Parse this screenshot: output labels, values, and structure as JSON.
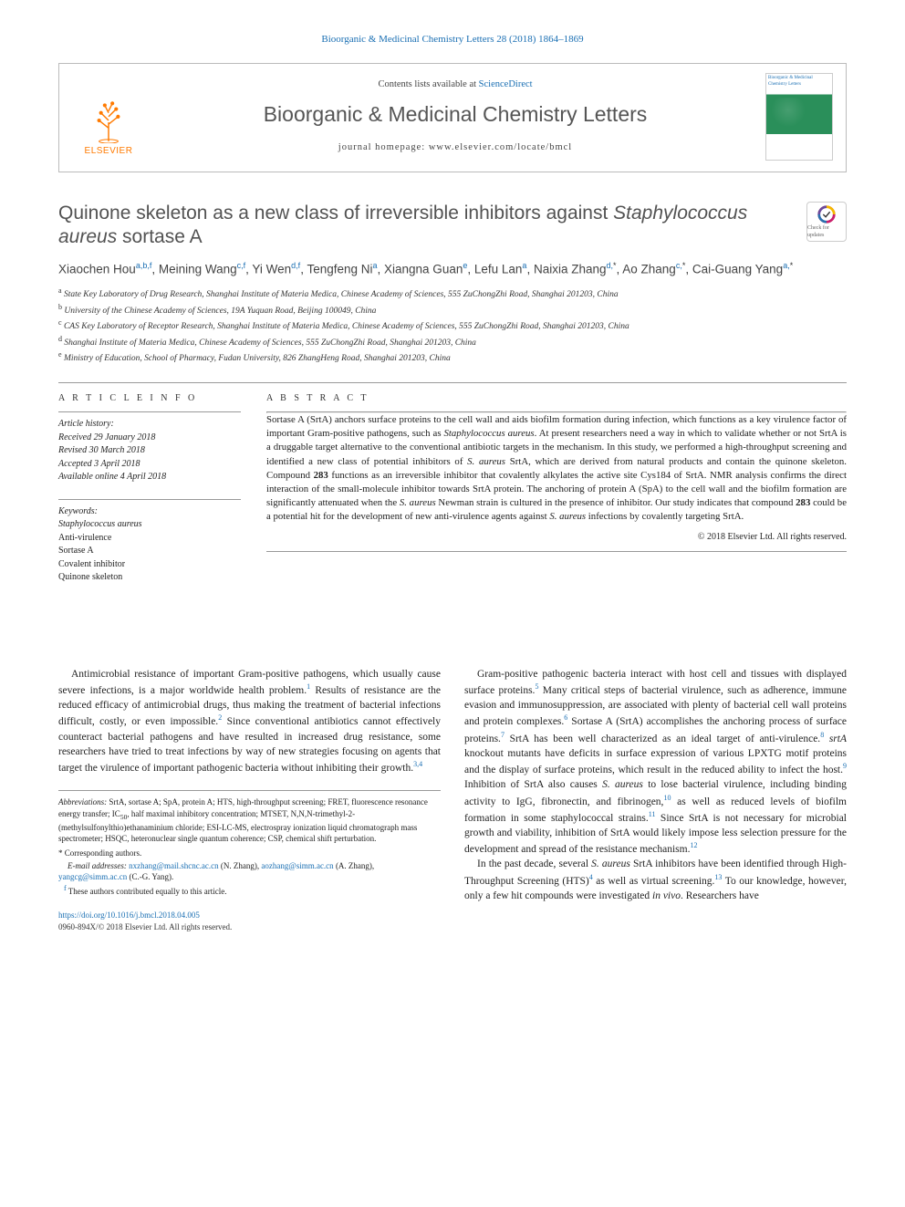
{
  "header": {
    "citation": "Bioorganic & Medicinal Chemistry Letters 28 (2018) 1864–1869",
    "contents_prefix": "Contents lists available at ",
    "contents_link": "ScienceDirect",
    "journal_name": "Bioorganic & Medicinal Chemistry Letters",
    "home_prefix": "journal homepage: ",
    "home_url": "www.elsevier.com/locate/bmcl",
    "publisher": "ELSEVIER",
    "cover_label": "Bioorganic & Medicinal Chemistry Letters"
  },
  "article": {
    "title_pre": "Quinone skeleton as a new class of irreversible inhibitors against ",
    "title_ital": "Staphylococcus aureus",
    "title_post": " sortase A",
    "check_label": "Check for updates"
  },
  "authors_html": "Xiaochen Hou<sup>a,b,f</sup>, Meining Wang<sup>c,f</sup>, Yi Wen<sup>d,f</sup>, Tengfeng Ni<sup>a</sup>, Xiangna Guan<sup>e</sup>, Lefu Lan<sup>a</sup>, Naixia Zhang<sup>d,</sup><sup class=\"black\">*</sup>, Ao Zhang<sup>c,</sup><sup class=\"black\">*</sup>, Cai-Guang Yang<sup>a,</sup><sup class=\"black\">*</sup>",
  "affils": [
    "a State Key Laboratory of Drug Research, Shanghai Institute of Materia Medica, Chinese Academy of Sciences, 555 ZuChongZhi Road, Shanghai 201203, China",
    "b University of the Chinese Academy of Sciences, 19A Yuquan Road, Beijing 100049, China",
    "c CAS Key Laboratory of Receptor Research, Shanghai Institute of Materia Medica, Chinese Academy of Sciences, 555 ZuChongZhi Road, Shanghai 201203, China",
    "d Shanghai Institute of Materia Medica, Chinese Academy of Sciences, 555 ZuChongZhi Road, Shanghai 201203, China",
    "e Ministry of Education, School of Pharmacy, Fudan University, 826 ZhangHeng Road, Shanghai 201203, China"
  ],
  "info": {
    "head": "A R T I C L E   I N F O",
    "history_label": "Article history:",
    "history": [
      "Received 29 January 2018",
      "Revised 30 March 2018",
      "Accepted 3 April 2018",
      "Available online 4 April 2018"
    ],
    "keywords_label": "Keywords:",
    "keywords": [
      "Staphylococcus aureus",
      "Anti-virulence",
      "Sortase A",
      "Covalent inhibitor",
      "Quinone skeleton"
    ]
  },
  "abstract": {
    "head": "A B S T R A C T",
    "text": "Sortase A (SrtA) anchors surface proteins to the cell wall and aids biofilm formation during infection, which functions as a key virulence factor of important Gram-positive pathogens, such as <span class=\"ital\">Staphylococcus aureus</span>. At present researchers need a way in which to validate whether or not SrtA is a druggable target alternative to the conventional antibiotic targets in the mechanism. In this study, we performed a high-throughput screening and identified a new class of potential inhibitors of <span class=\"ital\">S. aureus</span> SrtA, which are derived from natural products and contain the quinone skeleton. Compound <span class=\"bold\">283</span> functions as an irreversible inhibitor that covalently alkylates the active site Cys184 of SrtA. NMR analysis confirms the direct interaction of the small-molecule inhibitor towards SrtA protein. The anchoring of protein A (SpA) to the cell wall and the biofilm formation are significantly attenuated when the <span class=\"ital\">S. aureus</span> Newman strain is cultured in the presence of inhibitor. Our study indicates that compound <span class=\"bold\">283</span> could be a potential hit for the development of new anti-virulence agents against <span class=\"ital\">S. aureus</span> infections by covalently targeting SrtA.",
    "copyright": "© 2018 Elsevier Ltd. All rights reserved."
  },
  "body": {
    "col1_p1": "Antimicrobial resistance of important Gram-positive pathogens, which usually cause severe infections, is a major worldwide health problem.<sup>1</sup> Results of resistance are the reduced efficacy of antimicrobial drugs, thus making the treatment of bacterial infections difficult, costly, or even impossible.<sup>2</sup> Since conventional antibiotics cannot effectively counteract bacterial pathogens and have resulted in increased drug resistance, some researchers have tried to treat infections by way of new strategies focusing on agents that target the virulence of important pathogenic bacteria without inhibiting their growth.<sup>3,4</sup>",
    "col2_p1": "Gram-positive pathogenic bacteria interact with host cell and tissues with displayed surface proteins.<sup>5</sup> Many critical steps of bacterial virulence, such as adherence, immune evasion and immunosuppression, are associated with plenty of bacterial cell wall proteins and protein complexes.<sup>6</sup> Sortase A (SrtA) accomplishes the anchoring process of surface proteins.<sup>7</sup> SrtA has been well characterized as an ideal target of anti-virulence.<sup>8</sup> <span class=\"ital\">srtA</span> knockout mutants have deficits in surface expression of various LPXTG motif proteins and the display of surface proteins, which result in the reduced ability to infect the host.<sup>9</sup> Inhibition of SrtA also causes <span class=\"ital\">S. aureus</span> to lose bacterial virulence, including binding activity to IgG, fibronectin, and fibrinogen,<sup>10</sup> as well as reduced levels of biofilm formation in some staphylococcal strains.<sup>11</sup> Since SrtA is not necessary for microbial growth and viability, inhibition of SrtA would likely impose less selection pressure for the development and spread of the resistance mechanism.<sup>12</sup>",
    "col2_p2": "In the past decade, several <span class=\"ital\">S. aureus</span> SrtA inhibitors have been identified through High-Throughput Screening (HTS)<sup>4</sup> as well as virtual screening.<sup>13</sup> To our knowledge, however, only a few hit compounds were investigated <span class=\"ital\">in vivo</span>. Researchers have"
  },
  "footnotes": {
    "abbrev": "<span class=\"ital\">Abbreviations:</span> SrtA, sortase A; SpA, protein A; HTS, high-throughput screening; FRET, fluorescence resonance energy transfer; IC<sub>50</sub>, half maximal inhibitory concentration; MTSET, N,N,N-trimethyl-2-(methylsulfonylthio)ethanaminium chloride; ESI-LC-MS, electrospray ionization liquid chromatograph mass spectrometer; HSQC, heteronuclear single quantum coherence; CSP, chemical shift perturbation.",
    "corr_label": "* Corresponding authors.",
    "emails": "<span class=\"ital\">E-mail addresses:</span> <a>nxzhang@mail.shcnc.ac.cn</a> (N. Zhang), <a>aozhang@simm.ac.cn</a> (A. Zhang), <a>yangcg@simm.ac.cn</a> (C.-G. Yang).",
    "equal": "f These authors contributed equally to this article."
  },
  "doi": {
    "url": "https://doi.org/10.1016/j.bmcl.2018.04.005",
    "line2": "0960-894X/© 2018 Elsevier Ltd. All rights reserved."
  }
}
